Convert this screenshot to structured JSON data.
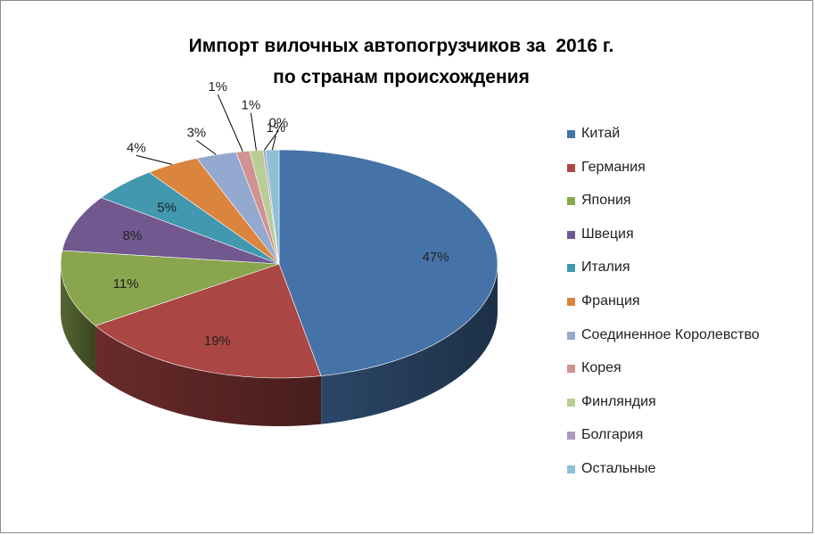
{
  "chart_data": {
    "type": "pie",
    "title_lines": [
      "Импорт вилочных автопогрузчиков за  2016 г.",
      "по странам происхождения"
    ],
    "categories": [
      "Китай",
      "Германия",
      "Япония",
      "Швеция",
      "Италия",
      "Франция",
      "Соединенное Королевство",
      "Корея",
      "Финляндия",
      "Болгария",
      "Остальные"
    ],
    "values": [
      47,
      19,
      11,
      8,
      5,
      4,
      3,
      1,
      1,
      0,
      1
    ],
    "data_labels": [
      "47%",
      "19%",
      "11%",
      "8%",
      "5%",
      "4%",
      "3%",
      "1%",
      "1%",
      "0%",
      "1%"
    ],
    "colors": [
      "#4572A7",
      "#AA4643",
      "#89A54E",
      "#71588F",
      "#4198AF",
      "#DB843D",
      "#93A9CF",
      "#D19392",
      "#B9CD96",
      "#A99BBD",
      "#8FC0D6"
    ],
    "legend_position": "right",
    "style": "3d"
  }
}
